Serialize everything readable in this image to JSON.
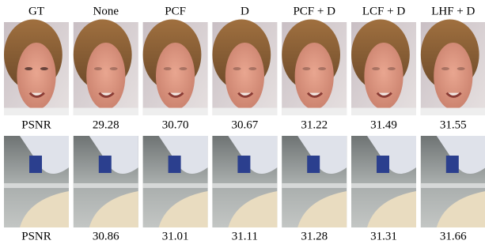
{
  "columns": [
    "GT",
    "None",
    "PCF",
    "D",
    "PCF + D",
    "LCF + D",
    "LHF + D"
  ],
  "rows": [
    {
      "label": "PSNR",
      "values": [
        "29.28",
        "30.70",
        "30.67",
        "31.22",
        "31.49",
        "31.55"
      ]
    },
    {
      "label": "PSNR",
      "values": [
        "30.86",
        "31.01",
        "31.11",
        "31.28",
        "31.31",
        "31.66"
      ]
    }
  ]
}
